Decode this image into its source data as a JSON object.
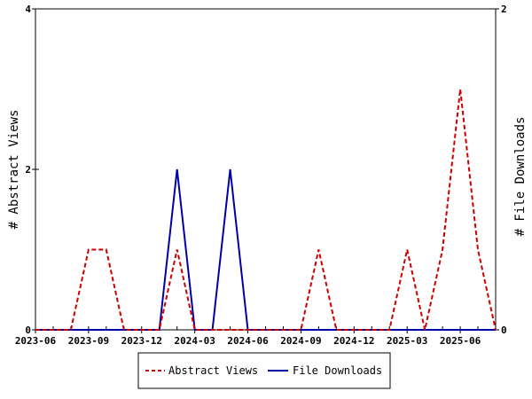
{
  "chart_data": {
    "type": "line",
    "x_ticks": [
      "2023-06",
      "2023-09",
      "2023-12",
      "2024-03",
      "2024-06",
      "2024-09",
      "2024-12",
      "2025-03",
      "2025-06"
    ],
    "x": [
      "2023-06",
      "2023-07",
      "2023-08",
      "2023-09",
      "2023-10",
      "2023-11",
      "2023-12",
      "2024-01",
      "2024-02",
      "2024-03",
      "2024-04",
      "2024-05",
      "2024-06",
      "2024-07",
      "2024-08",
      "2024-09",
      "2024-10",
      "2024-11",
      "2024-12",
      "2025-01",
      "2025-02",
      "2025-03",
      "2025-04",
      "2025-05",
      "2025-06",
      "2025-07",
      "2025-08"
    ],
    "series": [
      {
        "name": "Abstract Views",
        "axis": "left",
        "color": "#cc0000",
        "style": "dashed",
        "values": [
          0,
          0,
          0,
          1,
          1,
          0,
          0,
          0,
          1,
          0,
          0,
          0,
          0,
          0,
          0,
          0,
          1,
          0,
          0,
          0,
          0,
          1,
          0,
          1,
          3,
          1,
          0
        ]
      },
      {
        "name": "File Downloads",
        "axis": "right",
        "color": "#0000aa",
        "style": "solid",
        "values": [
          0,
          0,
          0,
          0,
          0,
          0,
          0,
          0,
          1,
          0,
          0,
          1,
          0,
          0,
          0,
          0,
          0,
          0,
          0,
          0,
          0,
          0,
          0,
          0,
          0,
          0,
          0
        ]
      }
    ],
    "y_left": {
      "label": "# Abstract Views",
      "min": 0,
      "max": 4,
      "ticks": [
        0,
        2,
        4
      ]
    },
    "y_right": {
      "label": "# File Downloads",
      "min": 0,
      "max": 2,
      "ticks": [
        0,
        2
      ]
    },
    "legend_position": "bottom",
    "grid": false
  }
}
